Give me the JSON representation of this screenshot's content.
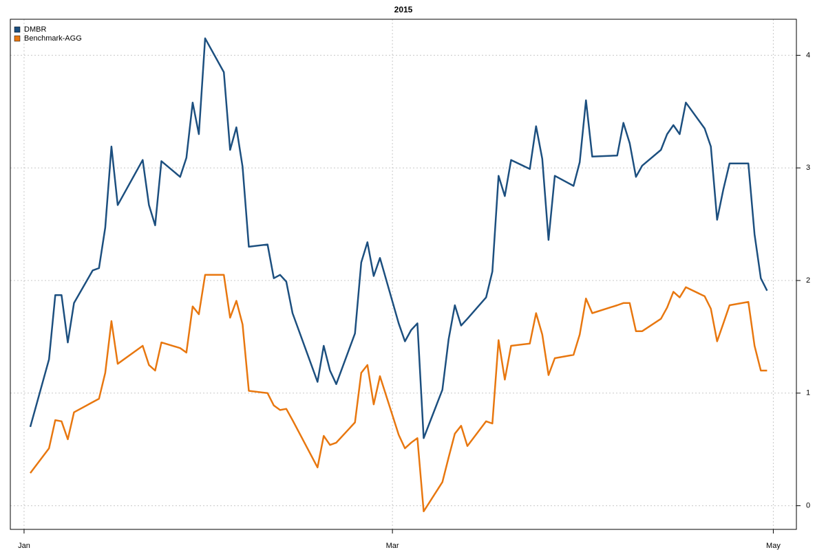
{
  "chart_data": {
    "type": "line",
    "title": "2015",
    "x": [
      1,
      4,
      5,
      6,
      7,
      8,
      11,
      12,
      13,
      14,
      15,
      19,
      20,
      21,
      22,
      25,
      26,
      27,
      28,
      29,
      32,
      33,
      34,
      35,
      36,
      39,
      40,
      41,
      42,
      43,
      47,
      48,
      49,
      50,
      53,
      54,
      55,
      56,
      57,
      60,
      61,
      62,
      63,
      64,
      67,
      68,
      69,
      70,
      71,
      74,
      75,
      76,
      77,
      78,
      81,
      82,
      83,
      84,
      85,
      88,
      89,
      90,
      91,
      95,
      96,
      97,
      98,
      99,
      102,
      103,
      104,
      105,
      106,
      109,
      110,
      111,
      112,
      113,
      116,
      117,
      118,
      119
    ],
    "series": [
      {
        "name": "DMBR",
        "color": "#1c4f7f",
        "values": [
          0.7,
          1.3,
          1.87,
          1.87,
          1.45,
          1.8,
          2.09,
          2.11,
          2.47,
          3.19,
          2.67,
          3.07,
          2.67,
          2.49,
          3.06,
          2.92,
          3.09,
          3.58,
          3.3,
          4.15,
          3.85,
          3.16,
          3.36,
          3.01,
          2.3,
          2.32,
          2.02,
          2.05,
          1.99,
          1.71,
          1.1,
          1.42,
          1.2,
          1.08,
          1.53,
          2.16,
          2.34,
          2.04,
          2.2,
          1.62,
          1.46,
          1.56,
          1.62,
          0.6,
          1.03,
          1.48,
          1.78,
          1.6,
          1.66,
          1.85,
          2.08,
          2.93,
          2.75,
          3.07,
          2.99,
          3.37,
          3.08,
          2.36,
          2.93,
          2.84,
          3.05,
          3.6,
          3.1,
          3.11,
          3.4,
          3.22,
          2.92,
          3.02,
          3.16,
          3.3,
          3.38,
          3.3,
          3.58,
          3.35,
          3.19,
          2.54,
          2.81,
          3.04,
          3.04,
          2.41,
          2.02,
          1.91
        ]
      },
      {
        "name": "Benchmark-AGG",
        "color": "#e8770f",
        "values": [
          0.29,
          0.51,
          0.76,
          0.75,
          0.59,
          0.83,
          0.92,
          0.95,
          1.18,
          1.64,
          1.26,
          1.42,
          1.25,
          1.2,
          1.45,
          1.4,
          1.36,
          1.77,
          1.7,
          2.05,
          2.05,
          1.67,
          1.82,
          1.61,
          1.02,
          1.0,
          0.89,
          0.85,
          0.86,
          0.76,
          0.34,
          0.62,
          0.54,
          0.56,
          0.74,
          1.18,
          1.25,
          0.9,
          1.15,
          0.63,
          0.51,
          0.56,
          0.6,
          -0.05,
          0.21,
          0.43,
          0.64,
          0.71,
          0.53,
          0.75,
          0.73,
          1.47,
          1.12,
          1.42,
          1.44,
          1.71,
          1.52,
          1.16,
          1.31,
          1.34,
          1.52,
          1.84,
          1.71,
          1.78,
          1.8,
          1.8,
          1.55,
          1.55,
          1.66,
          1.76,
          1.9,
          1.85,
          1.94,
          1.86,
          1.75,
          1.46,
          1.62,
          1.78,
          1.81,
          1.42,
          1.2,
          1.2
        ]
      }
    ],
    "xlim": [
      -2.2,
      123.7
    ],
    "xticks": [
      {
        "value": 0,
        "label": "Jan"
      },
      {
        "value": 59,
        "label": "Mar"
      },
      {
        "value": 120,
        "label": "May"
      }
    ],
    "ylim": [
      -0.21,
      4.32
    ],
    "yticks": [
      0,
      1,
      2,
      3,
      4
    ],
    "grid": true,
    "legend": "topleft"
  }
}
